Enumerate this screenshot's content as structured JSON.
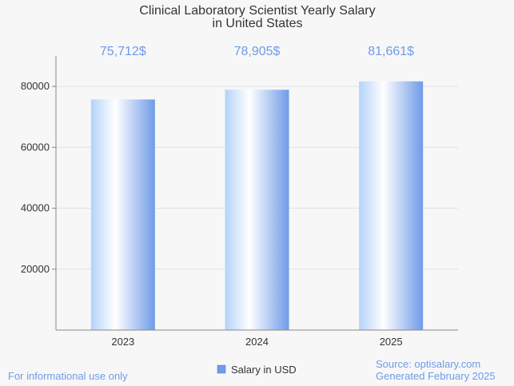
{
  "chart_data": {
    "type": "bar",
    "title": [
      "Clinical Laboratory Scientist Yearly Salary",
      "in United States"
    ],
    "categories": [
      "2023",
      "2024",
      "2025"
    ],
    "series": [
      {
        "name": "Salary in USD",
        "values": [
          75712,
          78905,
          81661
        ]
      }
    ],
    "data_labels": [
      "75,712$",
      "78,905$",
      "81,661$"
    ],
    "y_ticks": [
      20000,
      40000,
      60000,
      80000
    ],
    "ylim": [
      0,
      90000
    ],
    "grid": true,
    "legend": "bottom-center",
    "xlabel": "",
    "ylabel": ""
  },
  "footer": {
    "left": "For informational use only",
    "right_line1": "Source: optisalary.com",
    "right_line2": "Generated February 2025"
  },
  "colors": {
    "bar_edge": "#6f9be8",
    "bar_light": "#ffffff",
    "bar_mid": "#b4d2fa",
    "grid": "#e3e3e3",
    "axis": "#888888"
  }
}
